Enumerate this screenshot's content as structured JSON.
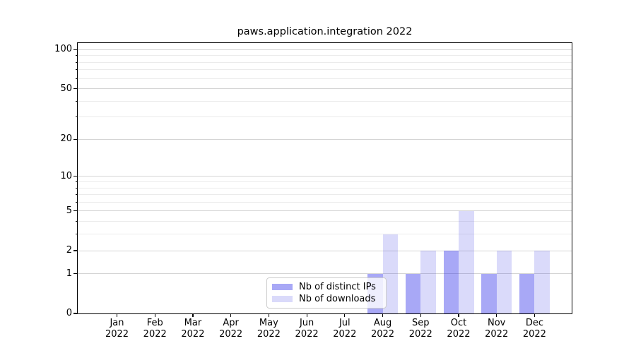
{
  "chart_data": {
    "type": "bar",
    "title": "paws.application.integration 2022",
    "categories": [
      "Jan 2022",
      "Feb 2022",
      "Mar 2022",
      "Apr 2022",
      "May 2022",
      "Jun 2022",
      "Jul 2022",
      "Aug 2022",
      "Sep 2022",
      "Oct 2022",
      "Nov 2022",
      "Dec 2022"
    ],
    "x_tick_labels": [
      {
        "month": "Jan",
        "year": "2022"
      },
      {
        "month": "Feb",
        "year": "2022"
      },
      {
        "month": "Mar",
        "year": "2022"
      },
      {
        "month": "Apr",
        "year": "2022"
      },
      {
        "month": "May",
        "year": "2022"
      },
      {
        "month": "Jun",
        "year": "2022"
      },
      {
        "month": "Jul",
        "year": "2022"
      },
      {
        "month": "Aug",
        "year": "2022"
      },
      {
        "month": "Sep",
        "year": "2022"
      },
      {
        "month": "Oct",
        "year": "2022"
      },
      {
        "month": "Nov",
        "year": "2022"
      },
      {
        "month": "Dec",
        "year": "2022"
      }
    ],
    "series": [
      {
        "name": "Nb of distinct IPs",
        "values": [
          0,
          0,
          0,
          0,
          0,
          0,
          0,
          1,
          1,
          2,
          1,
          1
        ],
        "fill": "rgba(38,38,233,0.40)",
        "rendered_color": "#a8a8f6"
      },
      {
        "name": "Nb of downloads",
        "values": [
          0,
          0,
          0,
          0,
          0,
          0,
          0,
          3,
          2,
          5,
          2,
          2
        ],
        "fill": "rgba(70,70,230,0.20)",
        "rendered_color": "#dadaf9"
      }
    ],
    "yscale": "log1p",
    "ylim": [
      0,
      112
    ],
    "yticks": [
      0,
      1,
      2,
      5,
      10,
      20,
      50,
      100
    ],
    "yticks_minor": [
      3,
      4,
      6,
      7,
      8,
      9,
      30,
      40,
      60,
      70,
      80,
      90
    ],
    "grid": "both",
    "legend": {
      "location": "lower center",
      "entries": [
        "Nb of distinct IPs",
        "Nb of downloads"
      ]
    }
  },
  "colors": {
    "major_grid": "#d4d4d4",
    "minor_grid": "#ebebeb",
    "spine": "#000000",
    "text": "#000000",
    "legend_border": "#cccccc",
    "legend_bg": "rgba(255,255,255,0.8)"
  }
}
